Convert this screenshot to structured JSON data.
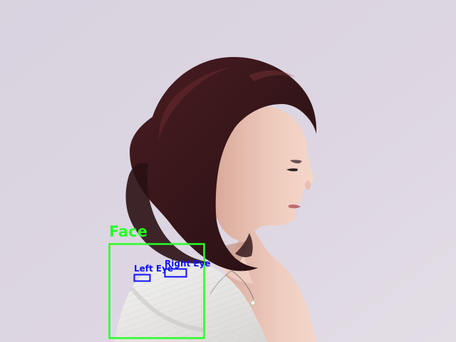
{
  "annotations": {
    "face": {
      "label": "Face",
      "color": "#28ff28"
    },
    "left_eye": {
      "label": "Left Eye",
      "color": "#1010ff"
    },
    "right_eye": {
      "label": "Right Eye",
      "color": "#1010ff"
    }
  },
  "scene": {
    "background_color": "#d9d2dd",
    "hair_color": "#3a1418",
    "skin_color": "#ecc4b2",
    "shirt_color": "#eeeeec"
  }
}
